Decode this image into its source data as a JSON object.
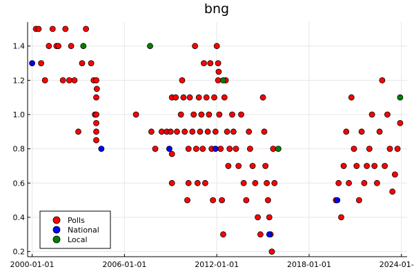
{
  "chart_data": {
    "type": "scatter",
    "title": "bng",
    "xlabel": "",
    "ylabel": "",
    "x_axis": {
      "kind": "date",
      "min": "1999-09-15",
      "max": "2024-05-15",
      "ticks": [
        "2000-01-01",
        "2006-01-01",
        "2012-01-01",
        "2018-01-01",
        "2024-01-01"
      ]
    },
    "y_axis": {
      "min": 0.17,
      "max": 1.54,
      "ticks": [
        0.2,
        0.4,
        0.6,
        0.8,
        1.0,
        1.2,
        1.4
      ],
      "tick_labels": [
        "0.2",
        "0.4",
        "0.6",
        "0.8",
        "1.0",
        "1.2",
        "1.4"
      ]
    },
    "grid": true,
    "legend": {
      "placement": "bottom-left",
      "entries": [
        {
          "label": "Polls",
          "color": "#ff0000"
        },
        {
          "label": "National",
          "color": "#0000ff"
        },
        {
          "label": "Local",
          "color": "#008000"
        }
      ]
    },
    "series": [
      {
        "name": "Polls",
        "color": "#ff0000",
        "points": [
          [
            "2000-04-01",
            1.5
          ],
          [
            "2000-06-01",
            1.5
          ],
          [
            "2000-08-01",
            1.3
          ],
          [
            "2000-11-01",
            1.2
          ],
          [
            "2001-02-01",
            1.4
          ],
          [
            "2001-05-01",
            1.5
          ],
          [
            "2001-08-01",
            1.4
          ],
          [
            "2001-09-15",
            1.4
          ],
          [
            "2002-01-01",
            1.2
          ],
          [
            "2002-03-01",
            1.5
          ],
          [
            "2002-06-01",
            1.2
          ],
          [
            "2002-07-15",
            1.4
          ],
          [
            "2002-10-01",
            1.2
          ],
          [
            "2003-01-01",
            0.9
          ],
          [
            "2003-04-01",
            1.3
          ],
          [
            "2003-07-01",
            1.5
          ],
          [
            "2003-11-01",
            1.3
          ],
          [
            "2004-01-01",
            1.2
          ],
          [
            "2004-03-01",
            1.2
          ],
          [
            "2004-03-15",
            1.15
          ],
          [
            "2004-03-01",
            1.1
          ],
          [
            "2004-02-01",
            1.0
          ],
          [
            "2004-03-01",
            1.0
          ],
          [
            "2004-03-01",
            0.95
          ],
          [
            "2004-03-01",
            0.9
          ],
          [
            "2004-03-01",
            0.85
          ],
          [
            "2006-10-01",
            1.0
          ],
          [
            "2007-10-01",
            0.9
          ],
          [
            "2008-01-01",
            0.8
          ],
          [
            "2008-06-01",
            0.9
          ],
          [
            "2008-10-01",
            0.9
          ],
          [
            "2009-01-01",
            0.9
          ],
          [
            "2009-02-01",
            1.1
          ],
          [
            "2009-02-01",
            0.77
          ],
          [
            "2009-02-01",
            0.6
          ],
          [
            "2009-05-01",
            1.1
          ],
          [
            "2009-06-01",
            0.9
          ],
          [
            "2009-09-01",
            1.0
          ],
          [
            "2009-10-01",
            1.2
          ],
          [
            "2009-11-01",
            1.1
          ],
          [
            "2009-12-01",
            0.9
          ],
          [
            "2010-02-01",
            0.5
          ],
          [
            "2010-03-01",
            0.8
          ],
          [
            "2010-03-01",
            0.6
          ],
          [
            "2010-04-01",
            1.1
          ],
          [
            "2010-06-01",
            0.9
          ],
          [
            "2010-07-01",
            1.0
          ],
          [
            "2010-08-01",
            1.4
          ],
          [
            "2010-09-01",
            0.8
          ],
          [
            "2010-10-01",
            0.6
          ],
          [
            "2010-11-01",
            1.1
          ],
          [
            "2010-12-01",
            0.9
          ],
          [
            "2011-01-01",
            1.0
          ],
          [
            "2011-02-01",
            0.8
          ],
          [
            "2011-03-01",
            1.3
          ],
          [
            "2011-04-01",
            0.6
          ],
          [
            "2011-05-01",
            1.1
          ],
          [
            "2011-06-01",
            0.9
          ],
          [
            "2011-07-01",
            1.0
          ],
          [
            "2011-08-01",
            1.3
          ],
          [
            "2011-09-01",
            0.8
          ],
          [
            "2011-10-01",
            0.5
          ],
          [
            "2011-11-01",
            1.1
          ],
          [
            "2011-12-01",
            0.9
          ],
          [
            "2012-01-01",
            1.4
          ],
          [
            "2012-02-01",
            1.3
          ],
          [
            "2012-02-15",
            1.25
          ],
          [
            "2012-02-01",
            1.2
          ],
          [
            "2012-03-01",
            1.0
          ],
          [
            "2012-04-01",
            0.8
          ],
          [
            "2012-05-01",
            0.5
          ],
          [
            "2012-06-01",
            0.3
          ],
          [
            "2012-07-01",
            1.1
          ],
          [
            "2012-08-01",
            1.2
          ],
          [
            "2012-09-01",
            0.9
          ],
          [
            "2012-10-01",
            0.7
          ],
          [
            "2012-11-01",
            0.8
          ],
          [
            "2013-01-01",
            1.0
          ],
          [
            "2013-02-01",
            0.9
          ],
          [
            "2013-04-01",
            0.8
          ],
          [
            "2013-06-01",
            0.7
          ],
          [
            "2013-08-01",
            1.0
          ],
          [
            "2013-10-01",
            0.6
          ],
          [
            "2013-12-01",
            0.5
          ],
          [
            "2014-02-01",
            0.9
          ],
          [
            "2014-03-01",
            0.8
          ],
          [
            "2014-05-01",
            0.7
          ],
          [
            "2014-07-01",
            0.6
          ],
          [
            "2014-09-01",
            0.4
          ],
          [
            "2014-11-01",
            0.3
          ],
          [
            "2015-01-01",
            1.1
          ],
          [
            "2015-02-01",
            0.9
          ],
          [
            "2015-03-01",
            0.7
          ],
          [
            "2015-04-01",
            0.6
          ],
          [
            "2015-05-01",
            0.5
          ],
          [
            "2015-06-01",
            0.4
          ],
          [
            "2015-07-01",
            0.3
          ],
          [
            "2015-08-01",
            0.2
          ],
          [
            "2015-09-01",
            0.8
          ],
          [
            "2015-10-01",
            0.6
          ],
          [
            "2019-10-01",
            0.5
          ],
          [
            "2019-12-01",
            0.6
          ],
          [
            "2020-02-01",
            0.4
          ],
          [
            "2020-04-01",
            0.7
          ],
          [
            "2020-06-01",
            0.9
          ],
          [
            "2020-08-01",
            0.6
          ],
          [
            "2020-10-01",
            1.1
          ],
          [
            "2020-12-01",
            0.8
          ],
          [
            "2021-02-01",
            0.7
          ],
          [
            "2021-04-01",
            0.5
          ],
          [
            "2021-06-01",
            0.9
          ],
          [
            "2021-08-01",
            0.6
          ],
          [
            "2021-10-01",
            0.7
          ],
          [
            "2021-12-01",
            0.8
          ],
          [
            "2022-02-01",
            1.0
          ],
          [
            "2022-04-01",
            0.7
          ],
          [
            "2022-06-01",
            0.6
          ],
          [
            "2022-08-01",
            0.9
          ],
          [
            "2022-10-01",
            1.2
          ],
          [
            "2022-12-01",
            0.7
          ],
          [
            "2023-02-01",
            1.0
          ],
          [
            "2023-04-01",
            0.8
          ],
          [
            "2023-06-01",
            0.55
          ],
          [
            "2023-08-01",
            0.65
          ],
          [
            "2023-10-01",
            0.8
          ],
          [
            "2023-12-01",
            0.95
          ]
        ]
      },
      {
        "name": "National",
        "color": "#0000ff",
        "points": [
          [
            "2000-01-01",
            1.3
          ],
          [
            "2004-07-01",
            0.8
          ],
          [
            "2008-12-01",
            0.8
          ],
          [
            "2011-12-01",
            0.8
          ],
          [
            "2015-06-01",
            0.3
          ],
          [
            "2019-11-01",
            0.5
          ]
        ]
      },
      {
        "name": "Local",
        "color": "#008000",
        "points": [
          [
            "2003-05-01",
            1.4
          ],
          [
            "2007-09-01",
            1.4
          ],
          [
            "2012-06-01",
            1.2
          ],
          [
            "2016-01-01",
            0.8
          ],
          [
            "2023-12-01",
            1.1
          ]
        ]
      }
    ]
  }
}
